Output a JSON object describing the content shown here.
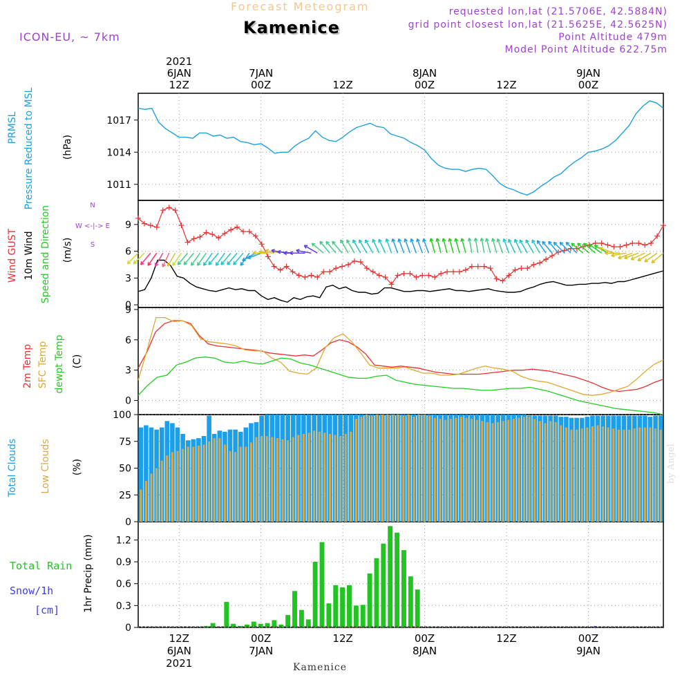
{
  "header": {
    "title": "Forecast Meteogram",
    "location": "Kamenice",
    "model": "ICON-EU, ~ 7km",
    "requested": "requested lon,lat (21.5706E, 42.5884N)",
    "grid": "grid point closest lon,lat (21.5625E, 42.5625N)",
    "altitude": "Point Altitude 479m",
    "model_altitude": "Model Point Altitude 622.75m",
    "bottom_label": "Kamenice",
    "watermark": "by Angel"
  },
  "colors": {
    "pressure": "#1ca0e0",
    "gust": "#e83030",
    "wind": "#000000",
    "direction": "#22cc22",
    "temp2m": "#e83030",
    "sfc": "#e0a830",
    "dewpt": "#22cc22",
    "total_clouds": "#1c9ee8",
    "low_clouds": "#d8a84a",
    "rain": "#22c422",
    "snow": "#4040e0",
    "title_color": "#f0c890",
    "meta": "#a040d0"
  },
  "time_axis": {
    "top": [
      "2021|6JAN|12Z",
      "7JAN|00Z",
      "12Z",
      "8JAN|00Z",
      "12Z",
      "9JAN|00Z"
    ],
    "bottom": [
      "12Z|6JAN|2021",
      "00Z|7JAN",
      "12Z",
      "00Z|8JAN",
      "12Z",
      "00Z|9JAN"
    ],
    "hours": [
      6,
      18,
      30,
      42,
      54,
      66
    ],
    "start_hour": 0,
    "end_hour": 77
  },
  "chart_data": [
    {
      "type": "line",
      "id": "pressure",
      "ylabel_lines": [
        "PRMSL",
        "Pressure Reduced to MSL"
      ],
      "unit": "(hPa)",
      "yticks": [
        "1011",
        "1014",
        "1017"
      ],
      "ylim": [
        1009.5,
        1019.5
      ],
      "series": [
        {
          "name": "PRMSL",
          "values": [
            1018.1,
            1018,
            1018.1,
            1016.8,
            1016.2,
            1015.8,
            1015.4,
            1015.4,
            1015.3,
            1015.8,
            1015.8,
            1015.5,
            1015.6,
            1015.3,
            1015.4,
            1015,
            1014.9,
            1014.7,
            1014.8,
            1014.4,
            1013.9,
            1014,
            1014,
            1014.6,
            1015,
            1015.3,
            1016,
            1015.4,
            1015.1,
            1015,
            1015.4,
            1015.9,
            1016.3,
            1016.5,
            1016.7,
            1016.4,
            1016.3,
            1015.7,
            1015.5,
            1015.3,
            1014.9,
            1014.6,
            1014.2,
            1013.4,
            1012.8,
            1012.5,
            1012.4,
            1012.4,
            1012.2,
            1012.4,
            1012.5,
            1012.4,
            1011.8,
            1011.1,
            1010.7,
            1010.5,
            1010.2,
            1010,
            1010.3,
            1010.8,
            1011.2,
            1011.7,
            1012,
            1012.6,
            1013.1,
            1013.5,
            1014,
            1014.1,
            1014.3,
            1014.6,
            1015.1,
            1015.8,
            1016.5,
            1017.6,
            1018.3,
            1018.8,
            1018.6,
            1018.1
          ]
        }
      ]
    },
    {
      "type": "line",
      "id": "wind",
      "ylabel_lines": [
        "Wind GUST",
        "10m Wind",
        "Speed and Direction"
      ],
      "unit": "(m/s)",
      "yticks": [
        "0",
        "3",
        "6",
        "9"
      ],
      "ylim": [
        -0.3,
        11.7
      ],
      "compass": [
        "N",
        "W <-|-> E",
        "S"
      ],
      "series": [
        {
          "name": "Wind GUST",
          "values": [
            9.7,
            9.1,
            8.9,
            8.7,
            10.6,
            10.9,
            10.6,
            8.9,
            7.0,
            7.4,
            7.6,
            8.1,
            7.9,
            7.5,
            8.0,
            8.4,
            8.7,
            8.2,
            8.2,
            7.7,
            6.8,
            5.4,
            4.3,
            3.9,
            4.3,
            3.7,
            3.3,
            3.1,
            3.3,
            3.1,
            3.7,
            3.7,
            4.1,
            4.3,
            4.5,
            4.9,
            4.8,
            4.1,
            3.7,
            3.3,
            3.1,
            2.3,
            3.3,
            3.5,
            3.5,
            3.1,
            3.3,
            3.3,
            3.1,
            3.5,
            3.7,
            3.7,
            3.7,
            3.9,
            4.3,
            4.3,
            4.3,
            4.1,
            2.9,
            2.7,
            3.3,
            3.9,
            4.1,
            4.1,
            4.5,
            4.7,
            5.1,
            5.5,
            5.9,
            6.1,
            6.3,
            6.3,
            6.5,
            6.7,
            6.9,
            6.9,
            6.7,
            6.5,
            6.5,
            6.7,
            6.9,
            6.9,
            6.7,
            6.9,
            7.7,
            8.9
          ]
        },
        {
          "name": "10m Wind",
          "values": [
            1.5,
            1.7,
            3.0,
            5.0,
            5.0,
            4.4,
            3.2,
            3.0,
            2.4,
            2.0,
            1.8,
            1.6,
            1.5,
            1.7,
            1.9,
            1.7,
            1.8,
            1.6,
            1.6,
            1.0,
            0.6,
            0.8,
            0.5,
            0.3,
            0.8,
            0.6,
            0.9,
            1.0,
            0.8,
            2.0,
            2.2,
            1.8,
            2.0,
            1.6,
            1.4,
            1.4,
            1.2,
            1.3,
            1.9,
            1.9,
            1.7,
            1.5,
            1.5,
            1.6,
            1.6,
            1.5,
            1.6,
            1.7,
            1.8,
            1.6,
            1.6,
            1.5,
            1.6,
            1.7,
            1.8,
            1.6,
            1.5,
            1.4,
            1.4,
            1.5,
            1.8,
            2.0,
            2.3,
            2.5,
            2.6,
            2.4,
            2.2,
            2.2,
            2.3,
            2.3,
            2.4,
            2.4,
            2.5,
            2.4,
            2.6,
            2.6,
            2.8,
            3.0,
            3.2,
            3.4,
            3.6,
            3.8
          ]
        }
      ],
      "direction_deg": [
        225,
        225,
        220,
        215,
        210,
        205,
        210,
        215,
        220,
        220,
        215,
        215,
        215,
        220,
        215,
        220,
        220,
        220,
        215,
        240,
        250,
        270,
        275,
        280,
        280,
        275,
        270,
        270,
        280,
        300,
        310,
        320,
        320,
        320,
        330,
        330,
        330,
        330,
        330,
        335,
        335,
        340,
        340,
        340,
        340,
        340,
        340,
        340,
        345,
        345,
        345,
        345,
        345,
        345,
        350,
        350,
        350,
        345,
        345,
        340,
        340,
        335,
        335,
        330,
        330,
        330,
        325,
        320,
        320,
        315,
        315,
        315,
        310,
        310,
        310,
        305,
        300,
        290,
        270,
        260,
        250,
        250,
        245,
        240,
        235,
        230
      ]
    },
    {
      "type": "line",
      "id": "temperature",
      "ylabel_lines": [
        "2m Temp",
        "SFC Temp",
        "dewpt Temp"
      ],
      "unit": "(C)",
      "yticks": [
        "0",
        "3",
        "6",
        "9"
      ],
      "ylim": [
        -1.4,
        9.2
      ],
      "series": [
        {
          "name": "2m Temp",
          "values": [
            3.2,
            4.8,
            6.8,
            7.6,
            7.9,
            7.9,
            7.6,
            6.4,
            5.6,
            5.4,
            5.3,
            5.2,
            5.1,
            5.0,
            4.9,
            4.7,
            4.6,
            4.5,
            4.4,
            4.5,
            4.4,
            5.0,
            5.7,
            6.0,
            5.8,
            5.3,
            4.6,
            3.5,
            3.4,
            3.3,
            3.4,
            3.3,
            3.2,
            3.0,
            2.8,
            2.7,
            2.6,
            2.6,
            2.6,
            2.6,
            2.7,
            2.8,
            2.9,
            3.0,
            3.0,
            3.1,
            3.0,
            2.9,
            2.7,
            2.5,
            2.3,
            2.0,
            1.7,
            1.3,
            1.0,
            0.9,
            1.0,
            1.1,
            1.4,
            1.8,
            2.1
          ]
        },
        {
          "name": "SFC Temp",
          "values": [
            2.0,
            5.0,
            8.2,
            8.2,
            7.8,
            7.9,
            7.4,
            6.1,
            5.8,
            5.7,
            5.6,
            5.4,
            5.0,
            4.9,
            4.9,
            4.2,
            3.8,
            2.9,
            2.7,
            2.6,
            3.2,
            5.2,
            6.2,
            6.6,
            5.8,
            4.7,
            3.5,
            3.2,
            3.2,
            3.2,
            3.3,
            3.0,
            2.7,
            2.7,
            2.5,
            2.5,
            2.6,
            2.9,
            3.2,
            3.4,
            3.2,
            3.1,
            2.9,
            2.4,
            2.1,
            1.9,
            1.8,
            1.5,
            1.2,
            0.9,
            0.6,
            0.5,
            0.6,
            0.8,
            1.1,
            1.4,
            2.1,
            2.9,
            3.6,
            4.0
          ]
        },
        {
          "name": "dewpt Temp",
          "values": [
            0.5,
            1.5,
            2.3,
            2.5,
            3.5,
            3.8,
            4.2,
            4.3,
            4.2,
            3.8,
            3.7,
            3.9,
            3.7,
            3.6,
            3.9,
            4.2,
            4.1,
            3.7,
            3.5,
            3.2,
            2.9,
            2.6,
            2.3,
            2.2,
            2.2,
            2.4,
            2.5,
            2.0,
            1.8,
            1.6,
            1.5,
            1.4,
            1.3,
            1.2,
            1.2,
            1.1,
            1.0,
            1.0,
            1.1,
            1.2,
            1.2,
            1.3,
            1.1,
            0.9,
            0.6,
            0.3,
            0.0,
            -0.2,
            -0.4,
            -0.6,
            -0.8,
            -0.9,
            -1.0,
            -1.1,
            -1.2,
            -1.4
          ]
        }
      ]
    },
    {
      "type": "bar",
      "id": "clouds",
      "ylabel_lines": [
        "Total Clouds",
        "Low Clouds"
      ],
      "unit": "(%)",
      "yticks": [
        "0",
        "25",
        "50",
        "75",
        "100"
      ],
      "ylim": [
        0,
        100
      ],
      "series": [
        {
          "name": "Total Clouds",
          "values": [
            88,
            90,
            88,
            86,
            88,
            94,
            92,
            88,
            82,
            76,
            77,
            78,
            80,
            99,
            82,
            85,
            84,
            86,
            86,
            84,
            88,
            92,
            93,
            99,
            100,
            100,
            100,
            100,
            100,
            100,
            100,
            100,
            100,
            100,
            100,
            100,
            100,
            100,
            100,
            100,
            100,
            100,
            100,
            100,
            100,
            100,
            100,
            100,
            100,
            100,
            100,
            100,
            100,
            100,
            100,
            100,
            100,
            100,
            100,
            100,
            100,
            100,
            100,
            100,
            100,
            100,
            100,
            100,
            100,
            100,
            100,
            100,
            100,
            100,
            99,
            99,
            99,
            99,
            99,
            99,
            98,
            98,
            97,
            97,
            97,
            98,
            99,
            99,
            99,
            99,
            99,
            99,
            99,
            99,
            99,
            99,
            99,
            98,
            99,
            99
          ]
        },
        {
          "name": "Low Clouds",
          "values": [
            30,
            38,
            45,
            50,
            57,
            62,
            65,
            66,
            68,
            70,
            70,
            71,
            72,
            75,
            78,
            78,
            72,
            66,
            65,
            70,
            70,
            74,
            79,
            80,
            80,
            79,
            78,
            77,
            76,
            79,
            81,
            82,
            83,
            85,
            84,
            83,
            82,
            81,
            80,
            82,
            84,
            96,
            98,
            100,
            99,
            100,
            100,
            100,
            100,
            100,
            99,
            100,
            98,
            100,
            100,
            99,
            97,
            96,
            95,
            96,
            97,
            98,
            97,
            96,
            95,
            94,
            93,
            92,
            93,
            94,
            95,
            96,
            97,
            98,
            98,
            96,
            94,
            92,
            94,
            93,
            90,
            88,
            86,
            86,
            87,
            88,
            89,
            90,
            89,
            88,
            87,
            86,
            86,
            86,
            87,
            88,
            88,
            88,
            87,
            86
          ]
        }
      ]
    },
    {
      "type": "bar",
      "id": "precipitation",
      "ylabel_lines": [
        "Total Rain",
        "Snow/1h",
        "[cm]"
      ],
      "unit": "1hr Precip (mm)",
      "yticks": [
        "0",
        "0.3",
        "0.6",
        "0.9",
        "1.2"
      ],
      "ylim": [
        0,
        1.45
      ],
      "series": [
        {
          "name": "Total Rain",
          "hours": [
            10,
            11,
            13,
            14,
            15,
            16,
            17,
            18,
            19,
            20,
            21,
            22,
            23,
            24,
            25,
            26,
            27,
            28,
            29,
            30,
            31,
            32,
            33,
            34,
            35,
            36,
            37,
            38,
            39,
            40,
            41,
            42
          ],
          "values": [
            0.02,
            0.06,
            0.35,
            0.05,
            0.02,
            0.04,
            0.08,
            0.05,
            0.06,
            0.1,
            0.04,
            0.17,
            0.5,
            0.24,
            0.11,
            0.9,
            1.17,
            0.33,
            0.58,
            0.55,
            0.58,
            0.3,
            0.31,
            0.74,
            0.95,
            1.15,
            1.39,
            1.3,
            1.06,
            0.7,
            0.52,
            0.0
          ]
        },
        {
          "name": "Snow/1h",
          "hours": [
            67
          ],
          "values": [
            0.01
          ]
        }
      ]
    }
  ]
}
